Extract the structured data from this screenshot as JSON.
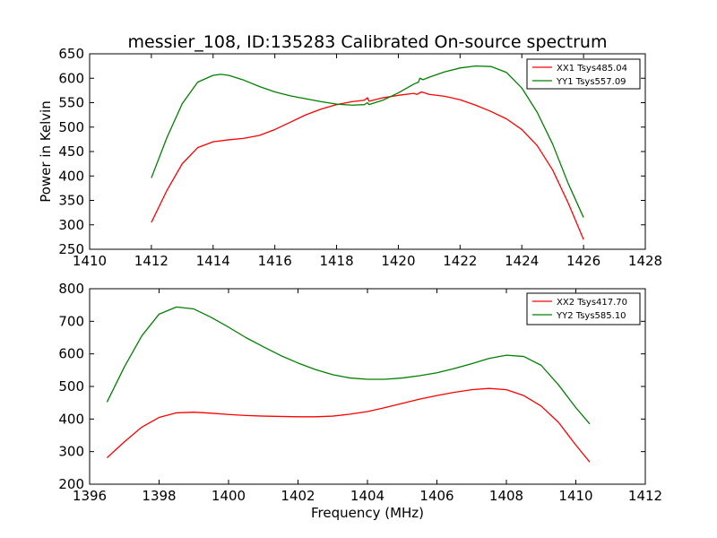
{
  "title": "messier_108, ID:135283 Calibrated On-source spectrum",
  "shared_xlabel": "Frequency (MHz)",
  "chart_data": [
    {
      "type": "line",
      "title": "messier_108, ID:135283 Calibrated On-source spectrum",
      "xlabel": "",
      "ylabel": "Power in Kelvin",
      "xlim": [
        1410,
        1428
      ],
      "ylim": [
        250,
        650
      ],
      "xticks": [
        1410,
        1412,
        1414,
        1416,
        1418,
        1420,
        1422,
        1424,
        1426,
        1428
      ],
      "yticks": [
        250,
        300,
        350,
        400,
        450,
        500,
        550,
        600,
        650
      ],
      "grid": false,
      "legend_position": "top-right",
      "series": [
        {
          "name": "XX1 Tsys485.04",
          "color": "#ff0000",
          "x": [
            1412.0,
            1412.5,
            1413.0,
            1413.5,
            1414.0,
            1414.5,
            1415.0,
            1415.5,
            1416.0,
            1416.5,
            1417.0,
            1417.5,
            1418.0,
            1418.5,
            1418.9,
            1419.0,
            1419.05,
            1419.5,
            1420.0,
            1420.5,
            1420.6,
            1420.75,
            1421.0,
            1421.5,
            1422.0,
            1422.5,
            1423.0,
            1423.5,
            1424.0,
            1424.5,
            1425.0,
            1425.5,
            1426.0
          ],
          "y": [
            305,
            370,
            425,
            458,
            470,
            474,
            477,
            483,
            495,
            510,
            525,
            537,
            546,
            552,
            555,
            560,
            553,
            560,
            565,
            569,
            567,
            572,
            567,
            563,
            556,
            545,
            532,
            517,
            495,
            462,
            412,
            345,
            270
          ]
        },
        {
          "name": "YY1 Tsys557.09",
          "color": "#008000",
          "x": [
            1412.0,
            1412.5,
            1413.0,
            1413.5,
            1414.0,
            1414.25,
            1414.5,
            1415.0,
            1415.5,
            1416.0,
            1416.5,
            1417.0,
            1417.5,
            1418.0,
            1418.5,
            1418.9,
            1419.0,
            1419.05,
            1419.5,
            1420.0,
            1420.5,
            1420.65,
            1420.7,
            1420.8,
            1421.0,
            1421.5,
            1422.0,
            1422.5,
            1423.0,
            1423.5,
            1424.0,
            1424.5,
            1425.0,
            1425.5,
            1426.0
          ],
          "y": [
            396,
            478,
            548,
            592,
            606,
            608,
            606,
            596,
            583,
            572,
            564,
            558,
            552,
            547,
            545,
            546,
            550,
            546,
            555,
            570,
            588,
            592,
            600,
            597,
            602,
            613,
            621,
            625,
            624,
            612,
            580,
            530,
            465,
            385,
            315
          ]
        }
      ]
    },
    {
      "type": "line",
      "title": "",
      "xlabel": "Frequency (MHz)",
      "ylabel": "",
      "xlim": [
        1396,
        1412
      ],
      "ylim": [
        200,
        800
      ],
      "xticks": [
        1396,
        1398,
        1400,
        1402,
        1404,
        1406,
        1408,
        1410,
        1412
      ],
      "yticks": [
        200,
        300,
        400,
        500,
        600,
        700,
        800
      ],
      "grid": false,
      "legend_position": "top-right",
      "series": [
        {
          "name": "XX2 Tsys417.70",
          "color": "#ff0000",
          "x": [
            1396.5,
            1397.0,
            1397.5,
            1398.0,
            1398.5,
            1399.0,
            1399.5,
            1400.0,
            1400.5,
            1401.0,
            1401.5,
            1402.0,
            1402.5,
            1403.0,
            1403.5,
            1404.0,
            1404.5,
            1405.0,
            1405.5,
            1406.0,
            1406.5,
            1407.0,
            1407.5,
            1408.0,
            1408.5,
            1409.0,
            1409.5,
            1410.0,
            1410.4
          ],
          "y": [
            281,
            330,
            375,
            405,
            419,
            421,
            418,
            414,
            411,
            409,
            408,
            407,
            407,
            409,
            415,
            423,
            435,
            448,
            461,
            472,
            482,
            490,
            494,
            490,
            472,
            440,
            390,
            320,
            268
          ]
        },
        {
          "name": "YY2 Tsys585.10",
          "color": "#008000",
          "x": [
            1396.5,
            1397.0,
            1397.5,
            1398.0,
            1398.5,
            1399.0,
            1399.5,
            1400.0,
            1400.5,
            1401.0,
            1401.5,
            1402.0,
            1402.5,
            1403.0,
            1403.5,
            1404.0,
            1404.5,
            1405.0,
            1405.5,
            1406.0,
            1406.5,
            1407.0,
            1407.5,
            1408.0,
            1408.5,
            1409.0,
            1409.5,
            1410.0,
            1410.4
          ],
          "y": [
            452,
            560,
            655,
            722,
            744,
            738,
            712,
            682,
            650,
            622,
            595,
            572,
            552,
            536,
            526,
            522,
            522,
            526,
            533,
            542,
            555,
            570,
            586,
            596,
            592,
            565,
            505,
            435,
            385
          ]
        }
      ]
    }
  ]
}
